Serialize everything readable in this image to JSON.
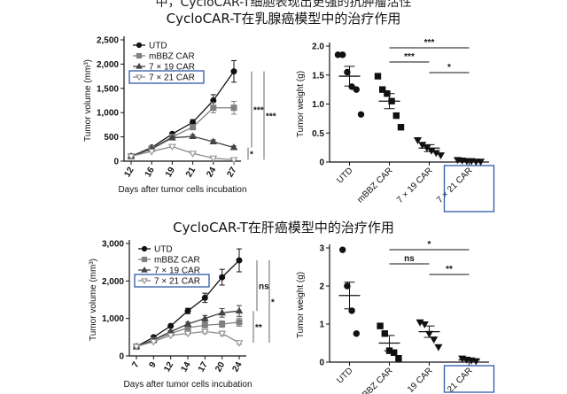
{
  "header": {
    "text": "中，CycloCAR-T细胞表现出更强的抗肿瘤活性"
  },
  "sections": [
    {
      "title": "CycloCAR-T在乳腺癌模型中的治疗作用"
    },
    {
      "title": "CycloCAR-T在肝癌模型中的治疗作用"
    }
  ],
  "colors": {
    "axis": "#111111",
    "series": [
      "#111111",
      "#808080",
      "#444444",
      "#8a8a8a"
    ],
    "highlight": "#2e5aa8"
  },
  "chart_data": [
    {
      "type": "line",
      "title": "",
      "xlabel": "Days after tumor cells incubation",
      "ylabel": "Tumor volume (mm³)",
      "x": [
        "12",
        "16",
        "19",
        "21",
        "24",
        "27"
      ],
      "ylim": [
        0,
        2500
      ],
      "yticks": [
        "0",
        "500",
        "1,000",
        "1,500",
        "2,000",
        "2,500"
      ],
      "legend_position": "top-left",
      "highlighted_legend": "7 × 21 CAR",
      "series": [
        {
          "name": "UTD",
          "marker": "circle",
          "values": [
            100,
            280,
            560,
            800,
            1250,
            1850
          ]
        },
        {
          "name": "mBBZ CAR",
          "marker": "square",
          "values": [
            100,
            260,
            500,
            700,
            1100,
            1100
          ]
        },
        {
          "name": "7 × 19 CAR",
          "marker": "triangle-up",
          "values": [
            100,
            250,
            480,
            510,
            400,
            280
          ]
        },
        {
          "name": "7 × 21 CAR",
          "marker": "triangle-down",
          "values": [
            100,
            200,
            300,
            160,
            60,
            30
          ]
        }
      ],
      "significance": [
        "***",
        "***",
        "*"
      ]
    },
    {
      "type": "scatter",
      "title": "",
      "ylabel": "Tumor weight (g)",
      "categories": [
        "UTD",
        "mBBZ CAR",
        "7 × 19 CAR",
        "7 × 21 CAR"
      ],
      "ylim": [
        0,
        2.0
      ],
      "yticks": [
        "0",
        "0.5",
        "1.0",
        "1.5",
        "2.0"
      ],
      "highlighted_category": "7 × 21 CAR",
      "series": [
        {
          "name": "UTD",
          "marker": "circle",
          "points": [
            1.85,
            1.85,
            1.55,
            1.3,
            1.25,
            0.82
          ],
          "mean": 1.48,
          "sem": 0.17
        },
        {
          "name": "mBBZ CAR",
          "marker": "square",
          "points": [
            1.48,
            1.25,
            1.18,
            1.05,
            0.8,
            0.6
          ],
          "mean": 1.05,
          "sem": 0.13
        },
        {
          "name": "7 × 19 CAR",
          "marker": "triangle-down",
          "points": [
            0.38,
            0.3,
            0.25,
            0.2,
            0.16,
            0.12
          ],
          "mean": 0.24,
          "sem": 0.06
        },
        {
          "name": "7 × 21 CAR",
          "marker": "triangle-down",
          "points": [
            0.04,
            0.03,
            0.02,
            0.02,
            0.01,
            0.01
          ],
          "mean": 0.02,
          "sem": 0.01
        }
      ],
      "significance": [
        {
          "from": "mBBZ CAR",
          "to": "7 × 21 CAR",
          "label": "***"
        },
        {
          "from": "mBBZ CAR",
          "to": "7 × 19 CAR",
          "label": "***"
        },
        {
          "from": "7 × 19 CAR",
          "to": "7 × 21 CAR",
          "label": "*"
        }
      ]
    },
    {
      "type": "line",
      "title": "",
      "xlabel": "Days after tumor cells incubation",
      "ylabel": "Tumor volume (mm³)",
      "x": [
        "7",
        "9",
        "12",
        "14",
        "17",
        "20",
        "24"
      ],
      "ylim": [
        0,
        3000
      ],
      "yticks": [
        "0",
        "1,000",
        "2,000",
        "3,000"
      ],
      "legend_position": "top-left",
      "highlighted_legend": "7 × 21 CAR",
      "series": [
        {
          "name": "UTD",
          "marker": "circle",
          "values": [
            250,
            500,
            800,
            1200,
            1550,
            2100,
            2550
          ]
        },
        {
          "name": "mBBZ CAR",
          "marker": "square",
          "values": [
            250,
            420,
            600,
            750,
            820,
            850,
            900
          ]
        },
        {
          "name": "7 × 19 CAR",
          "marker": "triangle-up",
          "values": [
            250,
            430,
            650,
            850,
            1000,
            1150,
            1200
          ]
        },
        {
          "name": "7 × 21 CAR",
          "marker": "triangle-down",
          "values": [
            250,
            380,
            550,
            600,
            650,
            600,
            350
          ]
        }
      ],
      "significance": [
        "ns",
        "*",
        "**"
      ]
    },
    {
      "type": "scatter",
      "title": "",
      "ylabel": "Tumor weight (g)",
      "categories": [
        "UTD",
        "mBBZ CAR",
        "7 × 19 CAR",
        "7 × 21 CAR"
      ],
      "visible_tick_labels": [
        "UTD",
        "BBZ CAR",
        "19 CAR",
        "21 CAR"
      ],
      "ylim": [
        0,
        3
      ],
      "yticks": [
        "0",
        "1",
        "2",
        "3"
      ],
      "highlighted_category": "7 × 21 CAR",
      "series": [
        {
          "name": "UTD",
          "marker": "circle",
          "points": [
            2.95,
            2.0,
            1.35,
            0.75
          ],
          "mean": 1.75,
          "sem": 0.35
        },
        {
          "name": "mBBZ CAR",
          "marker": "square",
          "points": [
            0.95,
            0.75,
            0.3,
            0.25,
            0.1
          ],
          "mean": 0.5,
          "sem": 0.2
        },
        {
          "name": "7 × 19 CAR",
          "marker": "triangle-down",
          "points": [
            1.05,
            1.0,
            0.75,
            0.6,
            0.4
          ],
          "mean": 0.8,
          "sem": 0.15
        },
        {
          "name": "7 × 21 CAR",
          "marker": "triangle-down",
          "points": [
            0.1,
            0.07,
            0.05,
            0.03
          ],
          "mean": 0.06,
          "sem": 0.02
        }
      ],
      "significance": [
        {
          "from": "mBBZ CAR",
          "to": "7 × 21 CAR",
          "label": "*"
        },
        {
          "from": "mBBZ CAR",
          "to": "7 × 19 CAR",
          "label": "ns"
        },
        {
          "from": "7 × 19 CAR",
          "to": "7 × 21 CAR",
          "label": "**"
        }
      ]
    }
  ]
}
